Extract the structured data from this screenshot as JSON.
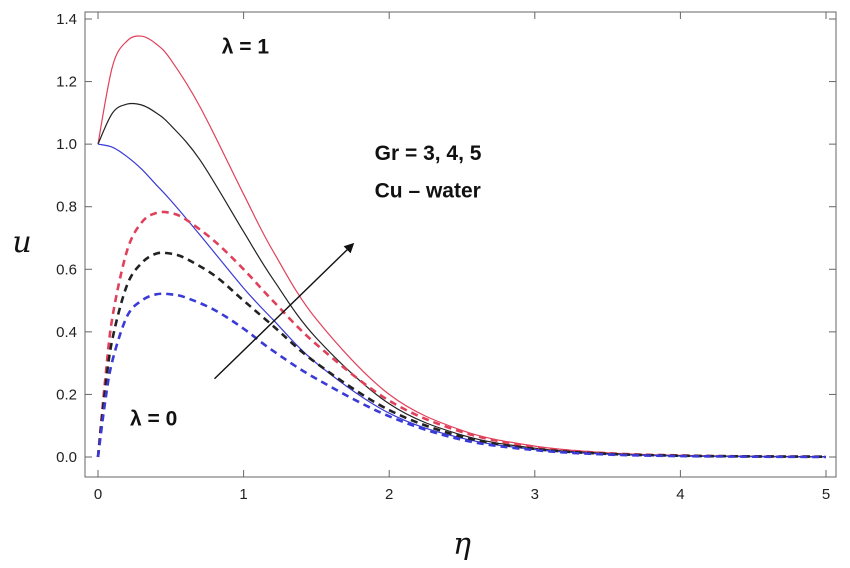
{
  "chart_data": {
    "type": "line",
    "title": "",
    "xlabel": "η",
    "ylabel": "u",
    "xlim": [
      0,
      5
    ],
    "ylim": [
      -0.03,
      1.42
    ],
    "x_ticks": [
      "0",
      "1",
      "2",
      "3",
      "4",
      "5"
    ],
    "y_ticks": [
      "0.0",
      "0.2",
      "0.4",
      "0.6",
      "0.8",
      "1.0",
      "1.2",
      "1.4"
    ],
    "grid": false,
    "series": [
      {
        "color": "#e0405a",
        "dash": false,
        "x": [
          0,
          0.1,
          0.2,
          0.3,
          0.4,
          0.5,
          0.7,
          1.0,
          1.2,
          1.5,
          2.0,
          2.5,
          3.0,
          3.5,
          4.0,
          4.5,
          5.0
        ],
        "y": [
          1.0,
          1.25,
          1.33,
          1.345,
          1.32,
          1.27,
          1.12,
          0.84,
          0.66,
          0.44,
          0.2,
          0.085,
          0.035,
          0.013,
          0.005,
          0.002,
          0.001
        ]
      },
      {
        "color": "#222222",
        "dash": false,
        "x": [
          0,
          0.1,
          0.2,
          0.3,
          0.4,
          0.5,
          0.7,
          1.0,
          1.2,
          1.5,
          2.0,
          2.5,
          3.0,
          3.5,
          4.0,
          4.5,
          5.0
        ],
        "y": [
          1.0,
          1.1,
          1.128,
          1.125,
          1.1,
          1.06,
          0.95,
          0.72,
          0.57,
          0.38,
          0.17,
          0.07,
          0.028,
          0.011,
          0.004,
          0.002,
          0.001
        ]
      },
      {
        "color": "#3a3ad6",
        "dash": false,
        "x": [
          0,
          0.1,
          0.2,
          0.3,
          0.4,
          0.5,
          0.7,
          1.0,
          1.2,
          1.5,
          2.0,
          2.5,
          3.0,
          3.5,
          4.0,
          4.5,
          5.0
        ],
        "y": [
          1.0,
          0.99,
          0.96,
          0.92,
          0.87,
          0.82,
          0.71,
          0.54,
          0.44,
          0.3,
          0.14,
          0.06,
          0.024,
          0.009,
          0.003,
          0.001,
          0.0
        ]
      },
      {
        "color": "#e0405a",
        "dash": true,
        "x": [
          0,
          0.05,
          0.1,
          0.2,
          0.3,
          0.4,
          0.5,
          0.6,
          0.8,
          1.0,
          1.2,
          1.5,
          2.0,
          2.5,
          3.0,
          3.5,
          4.0,
          4.5,
          5.0
        ],
        "y": [
          0.0,
          0.25,
          0.45,
          0.66,
          0.75,
          0.78,
          0.78,
          0.76,
          0.69,
          0.6,
          0.5,
          0.36,
          0.18,
          0.08,
          0.032,
          0.012,
          0.005,
          0.002,
          0.001
        ]
      },
      {
        "color": "#222222",
        "dash": true,
        "x": [
          0,
          0.05,
          0.1,
          0.2,
          0.3,
          0.4,
          0.5,
          0.6,
          0.8,
          1.0,
          1.2,
          1.5,
          2.0,
          2.5,
          3.0,
          3.5,
          4.0,
          4.5,
          5.0
        ],
        "y": [
          0.0,
          0.22,
          0.38,
          0.55,
          0.62,
          0.65,
          0.65,
          0.635,
          0.58,
          0.5,
          0.42,
          0.3,
          0.15,
          0.065,
          0.026,
          0.01,
          0.004,
          0.002,
          0.001
        ]
      },
      {
        "color": "#3a3ad6",
        "dash": true,
        "x": [
          0,
          0.05,
          0.1,
          0.2,
          0.3,
          0.4,
          0.5,
          0.6,
          0.8,
          1.0,
          1.2,
          1.5,
          2.0,
          2.5,
          3.0,
          3.5,
          4.0,
          4.5,
          5.0
        ],
        "y": [
          0.0,
          0.18,
          0.31,
          0.45,
          0.5,
          0.52,
          0.52,
          0.51,
          0.47,
          0.41,
          0.34,
          0.25,
          0.13,
          0.055,
          0.022,
          0.008,
          0.003,
          0.001,
          0.0
        ]
      }
    ],
    "annotations": [
      {
        "text": "λ = 1",
        "x": 0.85,
        "y": 1.29
      },
      {
        "text": "Gr = 3, 4, 5",
        "x": 1.9,
        "y": 0.95
      },
      {
        "text": "Cu  – water",
        "x": 1.9,
        "y": 0.83
      },
      {
        "text": "λ = 0",
        "x": 0.22,
        "y": 0.1
      }
    ],
    "arrow": {
      "from": [
        0.8,
        0.25
      ],
      "to": [
        1.75,
        0.68
      ]
    }
  }
}
